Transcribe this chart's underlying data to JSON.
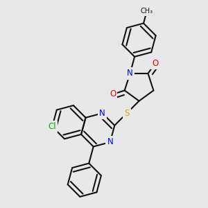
{
  "bg_color": "#e8e8e8",
  "bond_color": "#111111",
  "bond_width": 1.5,
  "dbo": 0.02,
  "atom_colors": {
    "N": "#0000ee",
    "O": "#ee0000",
    "S": "#ccaa00",
    "Cl": "#00aa00",
    "C": "#111111"
  },
  "fsa": 8.5,
  "fss": 7.0
}
